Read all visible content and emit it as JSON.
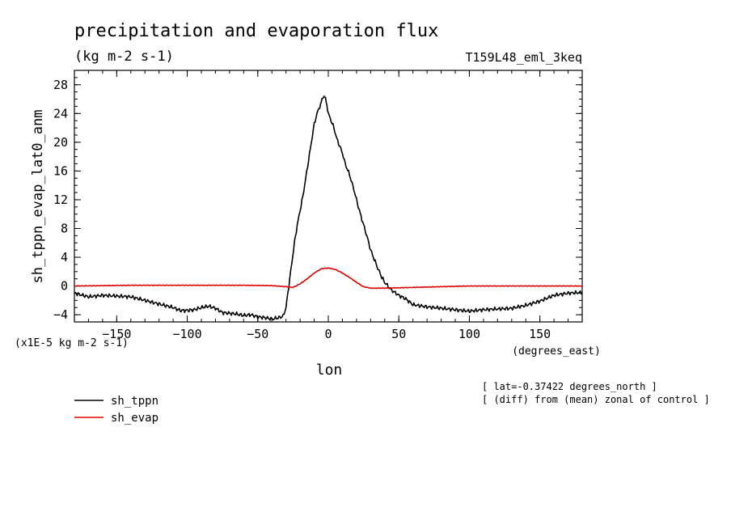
{
  "chart_data": {
    "type": "line",
    "title": "precipitation and evaporation flux",
    "subtitle": "(kg m-2 s-1)",
    "run_label": "T159L48_eml_3keq",
    "xlabel": "lon",
    "x_units": "(degrees_east)",
    "ylabel": "sh_tppn_evap_lat0_anm",
    "y_units": "(x1E-5 kg m-2 s-1)",
    "xlim": [
      -180,
      180
    ],
    "ylim": [
      -5,
      30
    ],
    "x_ticks": [
      -150,
      -100,
      -50,
      0,
      50,
      100,
      150
    ],
    "y_ticks": [
      -4,
      0,
      4,
      8,
      12,
      16,
      20,
      24,
      28
    ],
    "grid": false,
    "legend_position": "bottom-left",
    "notes": [
      "[ lat=-0.37422 degrees_north ]",
      "[ (diff) from (mean) zonal of control ]"
    ],
    "series": [
      {
        "name": "sh_tppn",
        "color": "#000000",
        "x": [
          -180,
          -170,
          -160,
          -150,
          -140,
          -130,
          -120,
          -110,
          -105,
          -100,
          -95,
          -90,
          -85,
          -80,
          -75,
          -70,
          -65,
          -60,
          -55,
          -50,
          -45,
          -40,
          -35,
          -32,
          -30,
          -28,
          -26,
          -24,
          -22,
          -20,
          -18,
          -16,
          -14,
          -12,
          -10,
          -8,
          -6,
          -5,
          -4,
          -3,
          -2,
          -1,
          0,
          2,
          4,
          6,
          8,
          10,
          12,
          15,
          18,
          20,
          22,
          25,
          28,
          30,
          32,
          35,
          38,
          40,
          45,
          50,
          55,
          60,
          70,
          80,
          90,
          100,
          110,
          120,
          130,
          140,
          150,
          160,
          170,
          180
        ],
        "values": [
          -1.0,
          -1.5,
          -1.3,
          -1.4,
          -1.5,
          -2.0,
          -2.5,
          -3.0,
          -3.4,
          -3.4,
          -3.3,
          -3.0,
          -2.8,
          -3.1,
          -3.7,
          -3.8,
          -3.9,
          -4.1,
          -4.0,
          -4.3,
          -4.4,
          -4.6,
          -4.4,
          -4.2,
          -3.0,
          0.0,
          3.0,
          6.0,
          8.5,
          10.5,
          12.5,
          15.0,
          17.5,
          20.0,
          22.5,
          24.0,
          25.0,
          25.5,
          26.2,
          26.5,
          26.0,
          25.2,
          24.0,
          23.0,
          22.0,
          20.5,
          19.5,
          18.5,
          17.0,
          15.5,
          13.5,
          12.0,
          10.5,
          8.5,
          6.5,
          5.0,
          4.0,
          2.5,
          1.2,
          0.5,
          -0.6,
          -1.3,
          -1.8,
          -2.6,
          -2.9,
          -3.1,
          -3.3,
          -3.5,
          -3.3,
          -3.2,
          -3.1,
          -2.7,
          -2.1,
          -1.3,
          -1.0,
          -0.9
        ]
      },
      {
        "name": "sh_evap",
        "color": "#e00000",
        "x": [
          -180,
          -160,
          -140,
          -120,
          -100,
          -80,
          -60,
          -40,
          -30,
          -25,
          -20,
          -15,
          -10,
          -5,
          0,
          5,
          10,
          15,
          20,
          25,
          30,
          40,
          60,
          80,
          100,
          120,
          140,
          160,
          180
        ],
        "values": [
          0.0,
          0.05,
          0.1,
          0.1,
          0.1,
          0.1,
          0.1,
          0.05,
          -0.1,
          -0.2,
          0.3,
          1.0,
          1.8,
          2.4,
          2.5,
          2.3,
          1.8,
          1.2,
          0.5,
          -0.1,
          -0.3,
          -0.3,
          -0.2,
          -0.1,
          0.0,
          0.0,
          0.0,
          0.0,
          0.0
        ]
      }
    ]
  }
}
